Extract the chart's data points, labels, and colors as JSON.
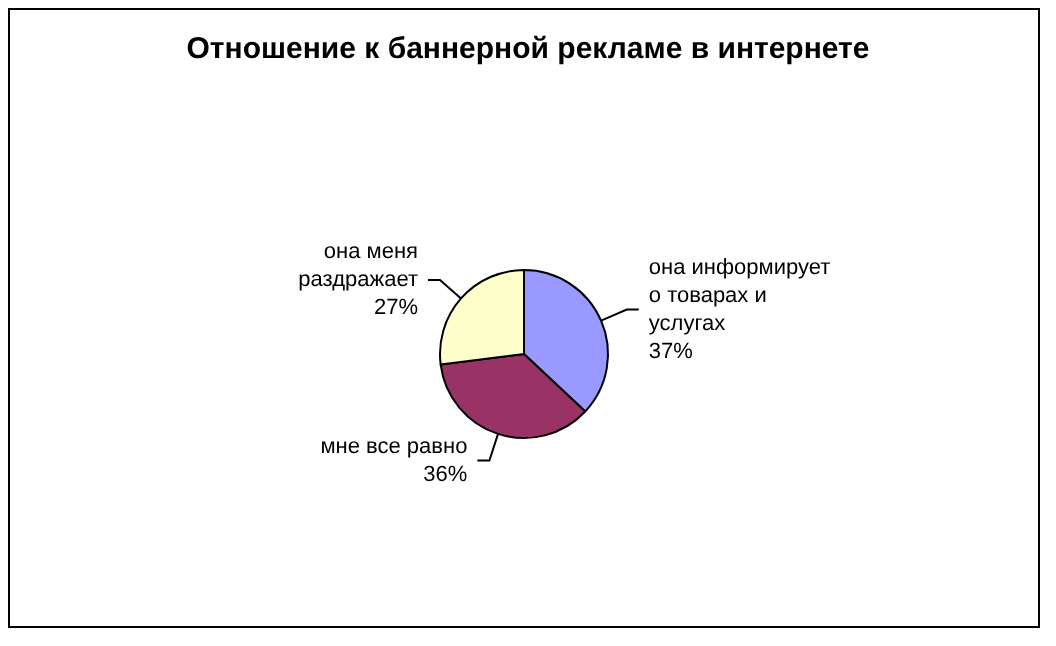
{
  "chart_data": {
    "type": "pie",
    "title": "Отношение к баннерной рекламе в интернете",
    "categories": [
      "она информирует о товарах и услугах",
      "мне все равно",
      "она меня раздражает"
    ],
    "values": [
      37,
      36,
      27
    ],
    "colors": [
      "#9999ff",
      "#993366",
      "#ffffcc"
    ],
    "value_labels": [
      "37%",
      "36%",
      "27%"
    ],
    "legend": false
  }
}
